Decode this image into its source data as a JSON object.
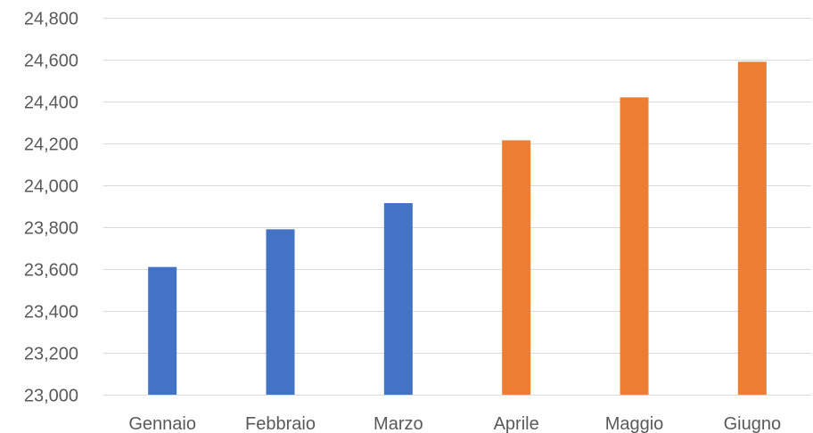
{
  "chart_data": {
    "type": "bar",
    "categories": [
      "Gennaio",
      "Febbraio",
      "Marzo",
      "Aprile",
      "Maggio",
      "Giugno"
    ],
    "series": [
      {
        "color": "#4472c4",
        "values": [
          23610,
          23790,
          23915,
          null,
          null,
          null
        ]
      },
      {
        "color": "#ed7d31",
        "values": [
          null,
          null,
          null,
          24215,
          24420,
          24590
        ]
      }
    ],
    "ylim": [
      23000,
      24800
    ],
    "ytick_step": 200,
    "ytick_labels": [
      "23,000",
      "23,200",
      "23,400",
      "23,600",
      "23,800",
      "24,000",
      "24,200",
      "24,400",
      "24,600",
      "24,800"
    ],
    "grid": true,
    "legend": "none",
    "title": "",
    "xlabel": "",
    "ylabel": ""
  }
}
